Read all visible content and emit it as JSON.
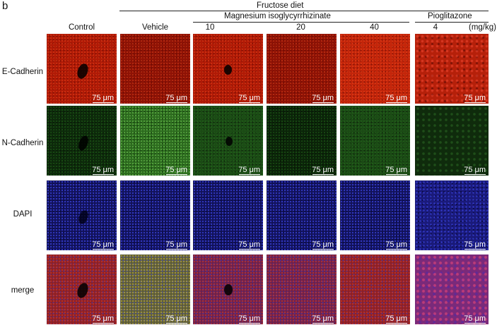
{
  "panel_letter": "b",
  "headers": {
    "fructose": "Fructose diet",
    "magnesium": "Magnesium isoglycyrrhizinate",
    "pioglitazone": "Pioglitazone",
    "unit": "(mg/kg)"
  },
  "columns": [
    "Control",
    "Vehicle",
    "10",
    "20",
    "40",
    "4"
  ],
  "rows": [
    "E-Cadherin",
    "N-Cadherin",
    "DAPI",
    "merge"
  ],
  "scale_bar": "75 μm",
  "colors": {
    "e_cadherin": "#b01a06",
    "n_cadherin": "#1b4a15",
    "dapi": "#12125a",
    "merge": "#6a2050"
  }
}
